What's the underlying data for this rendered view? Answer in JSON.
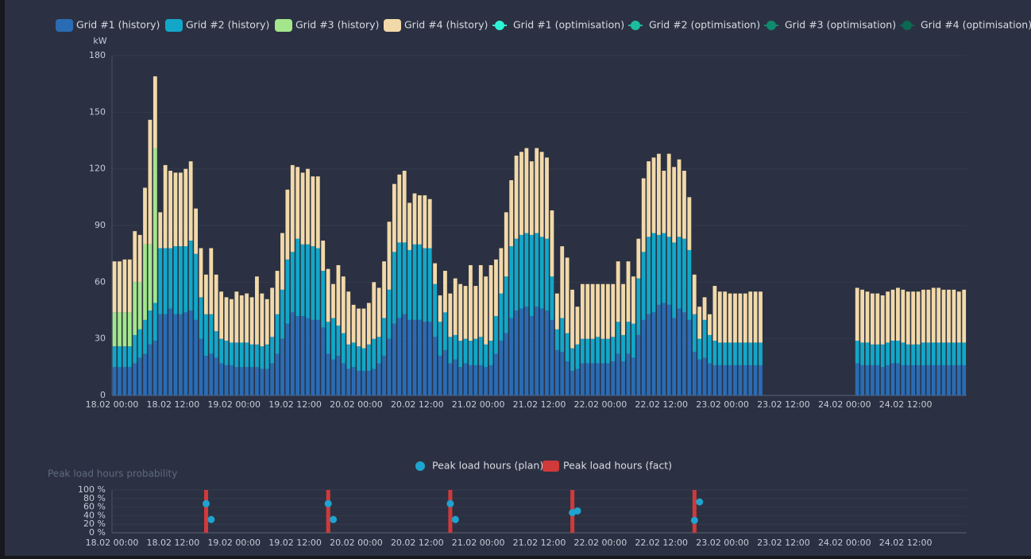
{
  "charts": [
    {
      "type": "stacked-bar",
      "y_label": "kW",
      "categories": [
        "18.02 00:00",
        null,
        null,
        null,
        null,
        null,
        null,
        null,
        null,
        null,
        null,
        null,
        "18.02 12:00",
        null,
        null,
        null,
        null,
        null,
        null,
        null,
        null,
        null,
        null,
        null,
        "19.02 00:00",
        null,
        null,
        null,
        null,
        null,
        null,
        null,
        null,
        null,
        null,
        null,
        "19.02 12:00",
        null,
        null,
        null,
        null,
        null,
        null,
        null,
        null,
        null,
        null,
        null,
        "20.02 00:00",
        null,
        null,
        null,
        null,
        null,
        null,
        null,
        null,
        null,
        null,
        null,
        "20.02 12:00",
        null,
        null,
        null,
        null,
        null,
        null,
        null,
        null,
        null,
        null,
        null,
        "21.02 00:00",
        null,
        null,
        null,
        null,
        null,
        null,
        null,
        null,
        null,
        null,
        null,
        "21.02 12:00",
        null,
        null,
        null,
        null,
        null,
        null,
        null,
        null,
        null,
        null,
        null,
        "22.02 00:00",
        null,
        null,
        null,
        null,
        null,
        null,
        null,
        null,
        null,
        null,
        null,
        "22.02 12:00",
        null,
        null,
        null,
        null,
        null,
        null,
        null,
        null,
        null,
        null,
        null,
        "23.02 00:00",
        null,
        null,
        null,
        null,
        null,
        null,
        null,
        null,
        null,
        null,
        null,
        "23.02 12:00",
        null,
        null,
        null,
        null,
        null,
        null,
        null,
        null,
        null,
        null,
        null,
        "24.02 00:00",
        null,
        null,
        null,
        null,
        null,
        null,
        null,
        null,
        null,
        null,
        null,
        "24.02 12:00",
        null,
        null,
        null,
        null,
        null,
        null,
        null,
        null,
        null,
        null,
        null
      ],
      "series": [
        {
          "name": "Grid #1 (history)",
          "color": "#2a6cb4",
          "values": [
            15,
            15,
            15,
            15,
            17,
            20,
            22,
            27,
            29,
            43,
            43,
            46,
            43,
            43,
            44,
            45,
            40,
            30,
            21,
            22,
            20,
            17,
            16,
            16,
            15,
            15,
            15,
            15,
            15,
            14,
            14,
            17,
            22,
            30,
            38,
            44,
            42,
            42,
            41,
            40,
            40,
            36,
            22,
            19,
            21,
            17,
            14,
            15,
            13,
            13,
            13,
            14,
            17,
            21,
            30,
            38,
            41,
            43,
            40,
            40,
            40,
            39,
            39,
            31,
            21,
            24,
            17,
            19,
            15,
            17,
            16,
            16,
            16,
            15,
            16,
            22,
            29,
            33,
            41,
            45,
            46,
            47,
            42,
            47,
            46,
            45,
            40,
            24,
            23,
            18,
            13,
            14,
            17,
            17,
            17,
            17,
            17,
            17,
            18,
            22,
            18,
            22,
            20,
            32,
            40,
            43,
            44,
            48,
            49,
            48,
            41,
            46,
            44,
            40,
            23,
            19,
            20,
            17,
            16,
            16,
            16,
            16,
            16,
            16,
            16,
            16,
            16,
            16,
            null,
            null,
            null,
            null,
            null,
            null,
            null,
            null,
            null,
            null,
            null,
            null,
            null,
            null,
            null,
            null,
            null,
            null,
            17,
            16,
            16,
            16,
            16,
            15,
            16,
            17,
            17,
            16,
            16,
            16,
            16,
            16,
            16,
            16,
            16,
            16,
            16,
            16,
            16,
            16
          ]
        },
        {
          "name": "Grid #2 (history)",
          "color": "#12a7c8",
          "values": [
            11,
            11,
            11,
            11,
            15,
            15,
            18,
            18,
            20,
            35,
            35,
            32,
            36,
            36,
            35,
            37,
            35,
            22,
            22,
            21,
            14,
            13,
            13,
            12,
            13,
            13,
            13,
            12,
            12,
            12,
            13,
            14,
            21,
            26,
            34,
            32,
            41,
            38,
            39,
            39,
            38,
            30,
            17,
            22,
            16,
            16,
            13,
            13,
            13,
            12,
            14,
            16,
            14,
            20,
            26,
            38,
            40,
            38,
            37,
            40,
            40,
            39,
            39,
            28,
            18,
            20,
            14,
            13,
            14,
            13,
            13,
            14,
            15,
            12,
            13,
            20,
            25,
            30,
            38,
            38,
            39,
            39,
            43,
            39,
            38,
            38,
            23,
            11,
            18,
            15,
            12,
            13,
            13,
            13,
            13,
            14,
            13,
            13,
            13,
            17,
            14,
            17,
            18,
            30,
            36,
            41,
            42,
            37,
            37,
            36,
            40,
            38,
            39,
            37,
            20,
            11,
            20,
            15,
            13,
            12,
            12,
            12,
            12,
            12,
            12,
            12,
            12,
            12,
            null,
            null,
            null,
            null,
            null,
            null,
            null,
            null,
            null,
            null,
            null,
            null,
            null,
            null,
            null,
            null,
            null,
            null,
            12,
            12,
            12,
            11,
            11,
            12,
            12,
            12,
            12,
            12,
            11,
            11,
            11,
            12,
            12,
            12,
            12,
            12,
            12,
            12,
            12,
            12
          ]
        },
        {
          "name": "Grid #3 (history)",
          "color": "#a3e68c",
          "values": [
            18,
            18,
            18,
            18,
            28,
            25,
            40,
            35,
            82,
            0,
            0,
            0,
            0,
            0,
            0,
            0,
            0,
            0,
            0,
            0,
            0,
            0,
            0,
            0,
            0,
            0,
            0,
            0,
            0,
            0,
            0,
            0,
            0,
            0,
            0,
            0,
            0,
            0,
            0,
            0,
            0,
            0,
            0,
            0,
            0,
            0,
            0,
            0,
            0,
            0,
            0,
            0,
            0,
            0,
            0,
            0,
            0,
            0,
            0,
            0,
            0,
            0,
            0,
            0,
            0,
            0,
            0,
            0,
            0,
            0,
            0,
            0,
            0,
            0,
            0,
            0,
            0,
            0,
            0,
            0,
            0,
            0,
            0,
            0,
            0,
            0,
            0,
            0,
            0,
            0,
            0,
            0,
            0,
            0,
            0,
            0,
            0,
            0,
            0,
            0,
            0,
            0,
            0,
            0,
            0,
            0,
            0,
            0,
            0,
            0,
            0,
            0,
            0,
            0,
            0,
            0,
            0,
            0,
            0,
            0,
            0,
            0,
            0,
            0,
            0,
            0,
            0,
            0,
            null,
            null,
            null,
            null,
            null,
            null,
            null,
            null,
            null,
            null,
            null,
            null,
            null,
            null,
            null,
            null,
            null,
            null,
            0,
            0,
            0,
            0,
            0,
            0,
            0,
            0,
            0,
            0,
            0,
            0,
            0,
            0,
            0,
            0,
            0,
            0,
            0,
            0,
            0,
            0
          ]
        },
        {
          "name": "Grid #4 (history)",
          "color": "#f2d9a9",
          "values": [
            27,
            27,
            28,
            28,
            27,
            25,
            30,
            66,
            38,
            19,
            44,
            41,
            39,
            39,
            41,
            42,
            24,
            26,
            21,
            35,
            30,
            25,
            23,
            23,
            27,
            25,
            26,
            25,
            36,
            28,
            24,
            26,
            23,
            30,
            37,
            46,
            38,
            38,
            40,
            37,
            38,
            16,
            28,
            18,
            32,
            30,
            28,
            20,
            20,
            21,
            22,
            30,
            26,
            30,
            36,
            36,
            36,
            38,
            25,
            27,
            26,
            28,
            26,
            11,
            14,
            22,
            23,
            30,
            30,
            28,
            40,
            28,
            38,
            36,
            40,
            30,
            24,
            34,
            35,
            44,
            44,
            45,
            39,
            45,
            45,
            43,
            35,
            19,
            38,
            40,
            31,
            20,
            29,
            29,
            29,
            28,
            29,
            29,
            28,
            32,
            27,
            32,
            25,
            21,
            39,
            40,
            40,
            43,
            33,
            44,
            40,
            41,
            36,
            28,
            21,
            17,
            12,
            11,
            29,
            27,
            27,
            26,
            26,
            26,
            26,
            27,
            27,
            27,
            null,
            null,
            null,
            null,
            null,
            null,
            null,
            null,
            null,
            null,
            null,
            null,
            null,
            null,
            null,
            null,
            null,
            null,
            28,
            28,
            27,
            27,
            27,
            26,
            27,
            27,
            28,
            28,
            28,
            28,
            28,
            28,
            28,
            29,
            29,
            28,
            28,
            28,
            27,
            28
          ]
        },
        {
          "name": "Grid #1 (optimisation)",
          "color": "#2ef2d6"
        },
        {
          "name": "Grid #2 (optimisation)",
          "color": "#1cbd9e"
        },
        {
          "name": "Grid #3 (optimisation)",
          "color": "#0f8a6e"
        },
        {
          "name": "Grid #4 (optimisation)",
          "color": "#0c6852"
        }
      ],
      "ylim": [
        0,
        180
      ],
      "yticks": [
        0,
        30,
        60,
        90,
        120,
        150,
        180
      ],
      "grid": true
    },
    {
      "type": "scatter-bar",
      "title": "Peak load hours probability",
      "xticks": [
        "18.02 00:00",
        "18.02 12:00",
        "19.02 00:00",
        "19.02 12:00",
        "20.02 00:00",
        "20.02 12:00",
        "21.02 00:00",
        "21.02 12:00",
        "22.02 00:00",
        "22.02 12:00",
        "23.02 00:00",
        "23.02 12:00",
        "24.02 00:00",
        "24.02 12:00"
      ],
      "series": [
        {
          "name": "Peak load hours (plan)",
          "color": "#1fa3cf",
          "x": [
            "18.02 18:00",
            "18.02 19:00",
            "19.02 18:00",
            "19.02 19:00",
            "20.02 18:00",
            "20.02 19:00",
            "21.02 18:00",
            "21.02 19:00",
            "22.02 18:00",
            "22.02 19:00"
          ],
          "values": [
            68,
            31,
            68,
            31,
            68,
            31,
            47,
            51,
            29,
            72
          ]
        },
        {
          "name": "Peak load hours (fact)",
          "color": "#d03a3a",
          "x": [
            "18.02 18:00",
            "19.02 18:00",
            "20.02 18:00",
            "21.02 18:00",
            "22.02 18:00"
          ],
          "values": [
            100,
            100,
            100,
            100,
            100
          ]
        }
      ],
      "ylim": [
        0,
        100
      ],
      "yticks": [
        {
          "value": 0,
          "label": "0 %"
        },
        {
          "value": 20,
          "label": "20 %"
        },
        {
          "value": 40,
          "label": "40 %"
        },
        {
          "value": 60,
          "label": "60 %"
        },
        {
          "value": 80,
          "label": "80 %"
        },
        {
          "value": 100,
          "label": "100 %"
        }
      ]
    }
  ]
}
